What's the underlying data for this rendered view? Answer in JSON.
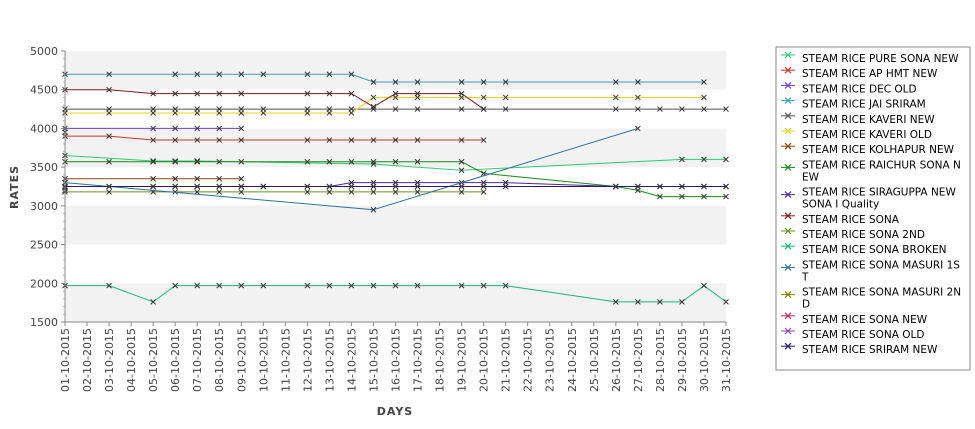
{
  "chart_data": {
    "type": "line",
    "xlabel": "DAYS",
    "ylabel": "RATES",
    "ylim": [
      1500,
      5000
    ],
    "yticks": [
      1500,
      2000,
      2500,
      3000,
      3500,
      4000,
      4500,
      5000
    ],
    "grid": "alternating horizontal bands",
    "legend_position": "right",
    "categories": [
      "01-10-2015",
      "02-10-2015",
      "03-10-2015",
      "04-10-2015",
      "05-10-2015",
      "06-10-2015",
      "07-10-2015",
      "08-10-2015",
      "09-10-2015",
      "10-10-2015",
      "11-10-2015",
      "12-10-2015",
      "13-10-2015",
      "14-10-2015",
      "15-10-2015",
      "16-10-2015",
      "17-10-2015",
      "18-10-2015",
      "19-10-2015",
      "20-10-2015",
      "21-10-2015",
      "22-10-2015",
      "23-10-2015",
      "24-10-2015",
      "25-10-2015",
      "26-10-2015",
      "27-10-2015",
      "28-10-2015",
      "29-10-2015",
      "30-10-2015",
      "31-10-2015"
    ],
    "series": [
      {
        "name": " STEAM RICE PURE SONA NEW",
        "color": "#2ecc71",
        "marker": "x",
        "values": [
          3650,
          null,
          null,
          null,
          3580,
          3580,
          3580,
          null,
          null,
          null,
          null,
          null,
          null,
          null,
          3540,
          null,
          null,
          null,
          3460,
          null,
          null,
          null,
          null,
          null,
          null,
          null,
          null,
          null,
          3600,
          3600,
          3600
        ]
      },
      {
        "name": "STEAM RICE AP HMT NEW",
        "color": "#c0392b",
        "marker": "x",
        "values": [
          3900,
          null,
          3900,
          null,
          3850,
          3850,
          3850,
          3850,
          3850,
          null,
          null,
          3850,
          3850,
          3850,
          3850,
          3850,
          3850,
          null,
          3850,
          3850,
          null,
          null,
          null,
          null,
          null,
          null,
          null,
          null,
          null,
          null,
          null
        ]
      },
      {
        "name": "STEAM RICE DEC OLD",
        "color": "#6a3fd8",
        "marker": "x",
        "values": [
          4000,
          null,
          null,
          null,
          4000,
          4000,
          4000,
          4000,
          4000,
          null,
          null,
          null,
          null,
          null,
          null,
          null,
          null,
          null,
          null,
          null,
          null,
          null,
          null,
          null,
          null,
          null,
          null,
          null,
          null,
          null,
          null
        ]
      },
      {
        "name": "STEAM RICE JAI SRIRAM",
        "color": "#3aa0b8",
        "marker": "x",
        "values": [
          4700,
          null,
          4700,
          null,
          null,
          4700,
          4700,
          4700,
          4700,
          4700,
          null,
          4700,
          4700,
          4700,
          4600,
          4600,
          4600,
          null,
          4600,
          4600,
          4600,
          null,
          null,
          null,
          null,
          4600,
          4600,
          null,
          null,
          4600,
          null
        ]
      },
      {
        "name": "STEAM RICE KAVERI NEW",
        "color": "#555555",
        "marker": "x",
        "values": [
          4250,
          null,
          4250,
          null,
          4250,
          4250,
          4250,
          4250,
          4250,
          4250,
          null,
          4250,
          4250,
          4250,
          4250,
          4250,
          4250,
          null,
          4250,
          4250,
          4250,
          null,
          null,
          null,
          null,
          4250,
          4250,
          4250,
          4250,
          4250,
          4250
        ]
      },
      {
        "name": "STEAM RICE KAVERI OLD",
        "color": "#e6d21f",
        "marker": "x",
        "values": [
          4200,
          null,
          4200,
          null,
          4200,
          4200,
          4200,
          4200,
          4200,
          4200,
          null,
          4200,
          4200,
          4200,
          4400,
          4400,
          4400,
          null,
          4400,
          4400,
          4400,
          null,
          null,
          null,
          null,
          4400,
          4400,
          null,
          null,
          4400,
          null
        ]
      },
      {
        "name": "STEAM RICE KOLHAPUR NEW",
        "color": "#8b4513",
        "marker": "x",
        "values": [
          3350,
          null,
          null,
          null,
          3350,
          3350,
          3350,
          3350,
          3350,
          null,
          null,
          null,
          null,
          null,
          null,
          null,
          null,
          null,
          null,
          null,
          null,
          null,
          null,
          null,
          null,
          null,
          null,
          null,
          null,
          null,
          null
        ]
      },
      {
        "name": "STEAM RICE RAICHUR SONA NEW",
        "color": "#1a8a1a",
        "marker": "x",
        "values": [
          3570,
          null,
          3570,
          null,
          3570,
          3570,
          3570,
          3570,
          3570,
          null,
          null,
          3570,
          3570,
          3570,
          3570,
          3570,
          3570,
          null,
          3570,
          3420,
          null,
          null,
          null,
          null,
          null,
          3250,
          3200,
          3120,
          3120,
          3120,
          3120
        ]
      },
      {
        "name": "STEAM RICE SIRAGUPPA NEW SONA I Quality",
        "color": "#4b2a99",
        "marker": "x",
        "values": [
          3250,
          null,
          3250,
          null,
          3250,
          3250,
          3250,
          3250,
          3250,
          3250,
          null,
          3250,
          3250,
          3300,
          3300,
          3300,
          3300,
          null,
          3300,
          3300,
          3300,
          null,
          null,
          null,
          null,
          3250,
          3250,
          3250,
          3250,
          3250,
          3250
        ]
      },
      {
        "name": "STEAM RICE SONA",
        "color": "#7a1a1a",
        "marker": "x",
        "values": [
          4500,
          null,
          4500,
          null,
          4450,
          4450,
          4450,
          4450,
          4450,
          null,
          null,
          4450,
          4450,
          4450,
          4280,
          4450,
          4450,
          null,
          4450,
          4250,
          null,
          null,
          null,
          null,
          null,
          null,
          null,
          null,
          null,
          null,
          null
        ]
      },
      {
        "name": "STEAM RICE SONA 2ND",
        "color": "#6b8e23",
        "marker": "x",
        "values": [
          3180,
          null,
          3180,
          null,
          3180,
          3180,
          3180,
          3180,
          3180,
          null,
          null,
          3180,
          3180,
          3180,
          3180,
          3180,
          3180,
          null,
          3180,
          3180,
          null,
          null,
          null,
          null,
          null,
          null,
          null,
          null,
          null,
          null,
          null
        ]
      },
      {
        "name": "STEAM RICE SONA BROKEN",
        "color": "#20b27a",
        "marker": "x",
        "values": [
          1970,
          null,
          1970,
          null,
          1760,
          1970,
          1970,
          1970,
          1970,
          1970,
          null,
          1970,
          1970,
          1970,
          1970,
          1970,
          1970,
          null,
          1970,
          1970,
          1970,
          null,
          null,
          null,
          null,
          1760,
          1760,
          1760,
          1760,
          1970,
          1760
        ]
      },
      {
        "name": "STEAM RICE SONA MASURI 1ST",
        "color": "#2f6fa0",
        "marker": "x",
        "values": [
          3300,
          null,
          null,
          null,
          null,
          null,
          null,
          null,
          null,
          null,
          null,
          null,
          null,
          null,
          2950,
          null,
          null,
          null,
          null,
          null,
          null,
          null,
          null,
          null,
          null,
          null,
          4000,
          null,
          null,
          null,
          null
        ]
      },
      {
        "name": "STEAM RICE SONA MASURI 2ND",
        "color": "#7f7f00",
        "marker": "x",
        "values": [
          3230,
          null,
          null,
          null,
          null,
          null,
          null,
          null,
          null,
          null,
          null,
          null,
          null,
          null,
          null,
          null,
          null,
          null,
          null,
          null,
          null,
          null,
          null,
          null,
          null,
          null,
          null,
          null,
          null,
          null,
          null
        ]
      },
      {
        "name": "STEAM RICE SONA NEW",
        "color": "#b0306b",
        "marker": "x",
        "values": [
          3950,
          null,
          null,
          null,
          null,
          null,
          null,
          null,
          null,
          null,
          null,
          null,
          null,
          null,
          null,
          null,
          null,
          null,
          null,
          null,
          null,
          null,
          null,
          null,
          null,
          null,
          null,
          null,
          null,
          null,
          null
        ]
      },
      {
        "name": "STEAM RICE SONA OLD",
        "color": "#8e44ad",
        "marker": "x",
        "values": [
          3200,
          null,
          null,
          null,
          null,
          null,
          null,
          null,
          null,
          null,
          null,
          null,
          null,
          null,
          null,
          null,
          null,
          null,
          null,
          null,
          null,
          null,
          null,
          null,
          null,
          null,
          null,
          null,
          null,
          null,
          null
        ]
      },
      {
        "name": "STEAM RICE SRIRAM NEW",
        "color": "#2a1a5e",
        "marker": "x",
        "values": [
          3250,
          null,
          3250,
          null,
          3250,
          3250,
          3250,
          3250,
          3250,
          3250,
          null,
          3250,
          3250,
          3250,
          3250,
          3250,
          3250,
          null,
          3250,
          3250,
          3250,
          null,
          null,
          null,
          null,
          3250,
          3250,
          3250,
          3250,
          3250,
          3250
        ]
      }
    ]
  }
}
